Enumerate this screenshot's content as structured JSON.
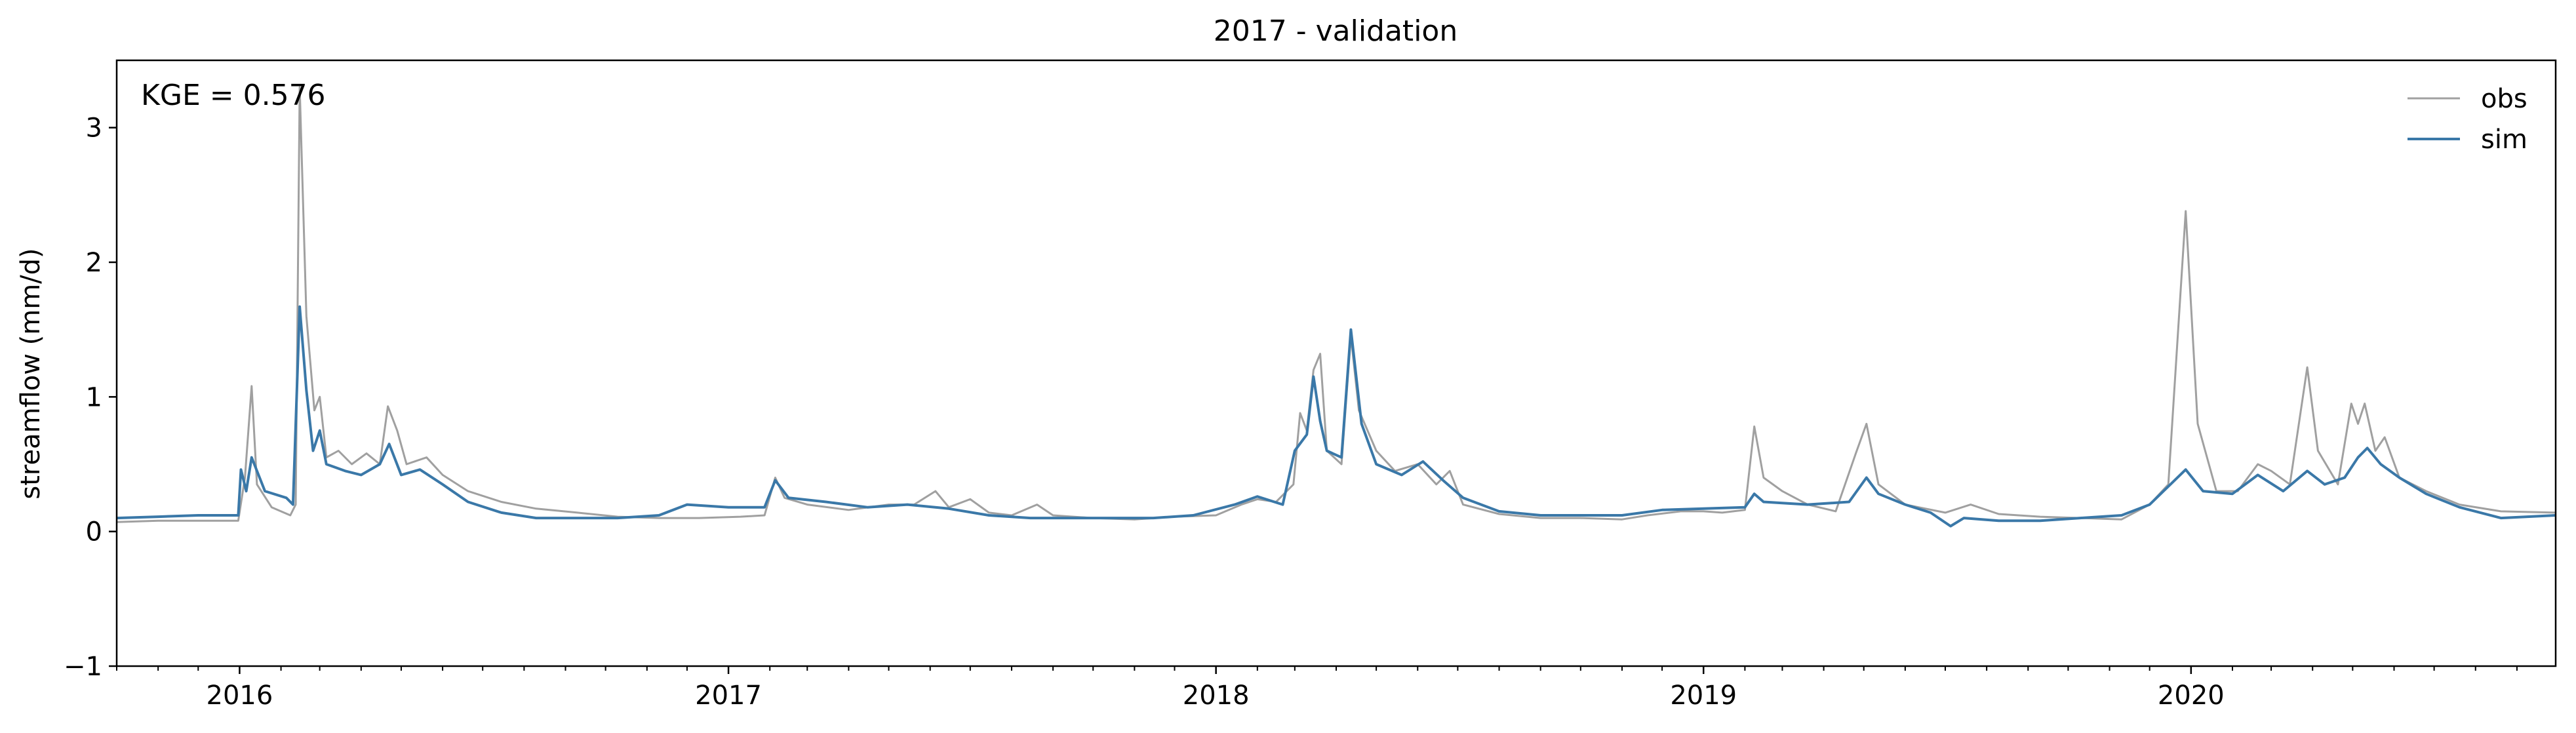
{
  "chart_data": {
    "type": "line",
    "title": "2017 - validation",
    "xlabel": "",
    "ylabel": "streamflow (mm/d)",
    "annotation": "KGE = 0.576",
    "xlim": [
      "2015-10-01",
      "2020-09-30"
    ],
    "ylim": [
      -1,
      3.5
    ],
    "yticks": [
      -1,
      0,
      1,
      2,
      3
    ],
    "xticks": [
      {
        "date": "2016-01-01",
        "label": "2016"
      },
      {
        "date": "2017-01-01",
        "label": "2017"
      },
      {
        "date": "2018-01-01",
        "label": "2018"
      },
      {
        "date": "2019-01-01",
        "label": "2019"
      },
      {
        "date": "2020-01-01",
        "label": "2020"
      }
    ],
    "grid": false,
    "legend_position": "top-right",
    "series": [
      {
        "name": "obs",
        "color": "#a0a0a0",
        "points": [
          [
            "2015-10-01",
            0.07
          ],
          [
            "2015-11-01",
            0.08
          ],
          [
            "2015-12-01",
            0.08
          ],
          [
            "2015-12-31",
            0.08
          ],
          [
            "2016-01-05",
            0.4
          ],
          [
            "2016-01-10",
            1.08
          ],
          [
            "2016-01-14",
            0.35
          ],
          [
            "2016-01-25",
            0.18
          ],
          [
            "2016-02-08",
            0.12
          ],
          [
            "2016-02-12",
            0.2
          ],
          [
            "2016-02-15",
            3.3
          ],
          [
            "2016-02-20",
            1.6
          ],
          [
            "2016-02-26",
            0.9
          ],
          [
            "2016-03-01",
            1.0
          ],
          [
            "2016-03-06",
            0.55
          ],
          [
            "2016-03-15",
            0.6
          ],
          [
            "2016-03-25",
            0.5
          ],
          [
            "2016-04-05",
            0.58
          ],
          [
            "2016-04-15",
            0.5
          ],
          [
            "2016-04-21",
            0.93
          ],
          [
            "2016-04-28",
            0.75
          ],
          [
            "2016-05-05",
            0.5
          ],
          [
            "2016-05-20",
            0.55
          ],
          [
            "2016-06-01",
            0.42
          ],
          [
            "2016-06-20",
            0.3
          ],
          [
            "2016-07-15",
            0.22
          ],
          [
            "2016-08-10",
            0.17
          ],
          [
            "2016-09-10",
            0.14
          ],
          [
            "2016-10-10",
            0.11
          ],
          [
            "2016-11-10",
            0.1
          ],
          [
            "2016-12-10",
            0.1
          ],
          [
            "2017-01-10",
            0.11
          ],
          [
            "2017-01-28",
            0.12
          ],
          [
            "2017-02-05",
            0.4
          ],
          [
            "2017-02-12",
            0.25
          ],
          [
            "2017-03-01",
            0.2
          ],
          [
            "2017-04-01",
            0.16
          ],
          [
            "2017-05-01",
            0.2
          ],
          [
            "2017-05-20",
            0.2
          ],
          [
            "2017-06-05",
            0.3
          ],
          [
            "2017-06-15",
            0.18
          ],
          [
            "2017-07-01",
            0.24
          ],
          [
            "2017-07-15",
            0.14
          ],
          [
            "2017-08-01",
            0.12
          ],
          [
            "2017-08-20",
            0.2
          ],
          [
            "2017-09-01",
            0.12
          ],
          [
            "2017-10-01",
            0.1
          ],
          [
            "2017-11-01",
            0.09
          ],
          [
            "2017-12-01",
            0.11
          ],
          [
            "2018-01-01",
            0.12
          ],
          [
            "2018-01-20",
            0.2
          ],
          [
            "2018-02-01",
            0.24
          ],
          [
            "2018-02-15",
            0.22
          ],
          [
            "2018-02-28",
            0.35
          ],
          [
            "2018-03-05",
            0.88
          ],
          [
            "2018-03-10",
            0.75
          ],
          [
            "2018-03-15",
            1.2
          ],
          [
            "2018-03-20",
            1.32
          ],
          [
            "2018-03-25",
            0.6
          ],
          [
            "2018-04-05",
            0.5
          ],
          [
            "2018-04-12",
            1.45
          ],
          [
            "2018-04-18",
            0.9
          ],
          [
            "2018-05-01",
            0.6
          ],
          [
            "2018-05-15",
            0.45
          ],
          [
            "2018-06-01",
            0.5
          ],
          [
            "2018-06-15",
            0.35
          ],
          [
            "2018-06-25",
            0.45
          ],
          [
            "2018-07-05",
            0.2
          ],
          [
            "2018-08-01",
            0.13
          ],
          [
            "2018-09-01",
            0.1
          ],
          [
            "2018-10-01",
            0.1
          ],
          [
            "2018-11-01",
            0.09
          ],
          [
            "2018-11-20",
            0.12
          ],
          [
            "2018-12-15",
            0.15
          ],
          [
            "2019-01-01",
            0.15
          ],
          [
            "2019-01-15",
            0.14
          ],
          [
            "2019-02-01",
            0.16
          ],
          [
            "2019-02-08",
            0.78
          ],
          [
            "2019-02-15",
            0.4
          ],
          [
            "2019-03-01",
            0.3
          ],
          [
            "2019-03-20",
            0.2
          ],
          [
            "2019-04-10",
            0.15
          ],
          [
            "2019-04-25",
            0.58
          ],
          [
            "2019-05-03",
            0.8
          ],
          [
            "2019-05-12",
            0.35
          ],
          [
            "2019-06-01",
            0.2
          ],
          [
            "2019-07-01",
            0.14
          ],
          [
            "2019-07-20",
            0.2
          ],
          [
            "2019-08-10",
            0.13
          ],
          [
            "2019-09-10",
            0.11
          ],
          [
            "2019-10-10",
            0.1
          ],
          [
            "2019-11-10",
            0.09
          ],
          [
            "2019-12-01",
            0.2
          ],
          [
            "2019-12-15",
            0.35
          ],
          [
            "2019-12-28",
            2.38
          ],
          [
            "2020-01-06",
            0.8
          ],
          [
            "2020-01-20",
            0.3
          ],
          [
            "2020-02-05",
            0.3
          ],
          [
            "2020-02-20",
            0.5
          ],
          [
            "2020-03-01",
            0.45
          ],
          [
            "2020-03-15",
            0.35
          ],
          [
            "2020-03-28",
            1.22
          ],
          [
            "2020-04-05",
            0.6
          ],
          [
            "2020-04-20",
            0.35
          ],
          [
            "2020-04-30",
            0.95
          ],
          [
            "2020-05-05",
            0.8
          ],
          [
            "2020-05-10",
            0.95
          ],
          [
            "2020-05-18",
            0.6
          ],
          [
            "2020-05-25",
            0.7
          ],
          [
            "2020-06-05",
            0.4
          ],
          [
            "2020-06-25",
            0.3
          ],
          [
            "2020-07-20",
            0.2
          ],
          [
            "2020-08-20",
            0.15
          ],
          [
            "2020-09-30",
            0.14
          ]
        ]
      },
      {
        "name": "sim",
        "color": "#3a78a8",
        "points": [
          [
            "2015-10-01",
            0.1
          ],
          [
            "2015-11-01",
            0.11
          ],
          [
            "2015-12-01",
            0.12
          ],
          [
            "2015-12-31",
            0.12
          ],
          [
            "2016-01-02",
            0.46
          ],
          [
            "2016-01-06",
            0.3
          ],
          [
            "2016-01-10",
            0.55
          ],
          [
            "2016-01-20",
            0.3
          ],
          [
            "2016-02-05",
            0.25
          ],
          [
            "2016-02-10",
            0.2
          ],
          [
            "2016-02-15",
            1.67
          ],
          [
            "2016-02-20",
            1.05
          ],
          [
            "2016-02-25",
            0.6
          ],
          [
            "2016-03-01",
            0.75
          ],
          [
            "2016-03-06",
            0.5
          ],
          [
            "2016-03-20",
            0.45
          ],
          [
            "2016-04-01",
            0.42
          ],
          [
            "2016-04-15",
            0.5
          ],
          [
            "2016-04-22",
            0.65
          ],
          [
            "2016-05-01",
            0.42
          ],
          [
            "2016-05-15",
            0.46
          ],
          [
            "2016-06-01",
            0.35
          ],
          [
            "2016-06-20",
            0.22
          ],
          [
            "2016-07-15",
            0.14
          ],
          [
            "2016-08-10",
            0.1
          ],
          [
            "2016-09-10",
            0.1
          ],
          [
            "2016-10-10",
            0.1
          ],
          [
            "2016-11-10",
            0.12
          ],
          [
            "2016-12-01",
            0.2
          ],
          [
            "2017-01-01",
            0.18
          ],
          [
            "2017-01-28",
            0.18
          ],
          [
            "2017-02-05",
            0.38
          ],
          [
            "2017-02-15",
            0.25
          ],
          [
            "2017-03-15",
            0.22
          ],
          [
            "2017-04-15",
            0.18
          ],
          [
            "2017-05-15",
            0.2
          ],
          [
            "2017-06-15",
            0.17
          ],
          [
            "2017-07-15",
            0.12
          ],
          [
            "2017-08-15",
            0.1
          ],
          [
            "2017-09-15",
            0.1
          ],
          [
            "2017-10-15",
            0.1
          ],
          [
            "2017-11-15",
            0.1
          ],
          [
            "2017-12-15",
            0.12
          ],
          [
            "2018-01-15",
            0.2
          ],
          [
            "2018-02-01",
            0.26
          ],
          [
            "2018-02-20",
            0.2
          ],
          [
            "2018-03-01",
            0.6
          ],
          [
            "2018-03-10",
            0.72
          ],
          [
            "2018-03-15",
            1.15
          ],
          [
            "2018-03-20",
            0.82
          ],
          [
            "2018-03-25",
            0.6
          ],
          [
            "2018-04-05",
            0.55
          ],
          [
            "2018-04-12",
            1.5
          ],
          [
            "2018-04-20",
            0.8
          ],
          [
            "2018-05-01",
            0.5
          ],
          [
            "2018-05-20",
            0.42
          ],
          [
            "2018-06-05",
            0.52
          ],
          [
            "2018-06-20",
            0.38
          ],
          [
            "2018-07-05",
            0.25
          ],
          [
            "2018-08-01",
            0.15
          ],
          [
            "2018-09-01",
            0.12
          ],
          [
            "2018-10-01",
            0.12
          ],
          [
            "2018-11-01",
            0.12
          ],
          [
            "2018-12-01",
            0.16
          ],
          [
            "2019-01-01",
            0.17
          ],
          [
            "2019-02-01",
            0.18
          ],
          [
            "2019-02-08",
            0.28
          ],
          [
            "2019-02-15",
            0.22
          ],
          [
            "2019-03-20",
            0.2
          ],
          [
            "2019-04-20",
            0.22
          ],
          [
            "2019-05-03",
            0.4
          ],
          [
            "2019-05-12",
            0.28
          ],
          [
            "2019-06-01",
            0.2
          ],
          [
            "2019-06-20",
            0.14
          ],
          [
            "2019-07-05",
            0.04
          ],
          [
            "2019-07-15",
            0.1
          ],
          [
            "2019-08-10",
            0.08
          ],
          [
            "2019-09-10",
            0.08
          ],
          [
            "2019-10-10",
            0.1
          ],
          [
            "2019-11-10",
            0.12
          ],
          [
            "2019-12-01",
            0.2
          ],
          [
            "2019-12-28",
            0.46
          ],
          [
            "2020-01-10",
            0.3
          ],
          [
            "2020-02-01",
            0.28
          ],
          [
            "2020-02-20",
            0.42
          ],
          [
            "2020-03-10",
            0.3
          ],
          [
            "2020-03-28",
            0.45
          ],
          [
            "2020-04-10",
            0.35
          ],
          [
            "2020-04-25",
            0.4
          ],
          [
            "2020-05-05",
            0.55
          ],
          [
            "2020-05-12",
            0.62
          ],
          [
            "2020-05-22",
            0.5
          ],
          [
            "2020-06-05",
            0.4
          ],
          [
            "2020-06-25",
            0.28
          ],
          [
            "2020-07-20",
            0.18
          ],
          [
            "2020-08-20",
            0.1
          ],
          [
            "2020-09-30",
            0.12
          ]
        ]
      }
    ]
  }
}
